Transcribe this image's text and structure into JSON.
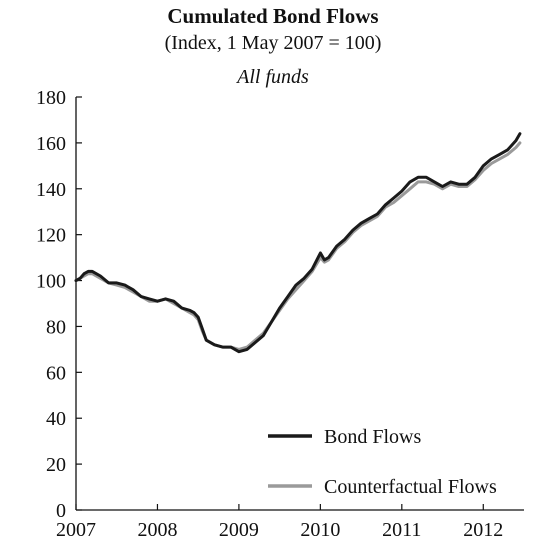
{
  "chart_data": {
    "type": "line",
    "title": "Cumulated Bond Flows",
    "subtitle": "(Index, 1 May 2007 = 100)",
    "panel_label": "All funds",
    "xlabel": "",
    "ylabel": "",
    "xlim": [
      2007,
      2012.5
    ],
    "ylim": [
      0,
      180
    ],
    "x_ticks": [
      2007,
      2008,
      2009,
      2010,
      2011,
      2012
    ],
    "y_ticks": [
      0,
      20,
      40,
      60,
      80,
      100,
      120,
      140,
      160,
      180
    ],
    "grid": false,
    "legend_position": "bottom-right",
    "series": [
      {
        "name": "Bond Flows",
        "color": "#1a1a1a",
        "x": [
          2007.0,
          2007.05,
          2007.1,
          2007.15,
          2007.2,
          2007.3,
          2007.4,
          2007.5,
          2007.6,
          2007.7,
          2007.8,
          2007.9,
          2008.0,
          2008.1,
          2008.2,
          2008.3,
          2008.4,
          2008.45,
          2008.5,
          2008.55,
          2008.6,
          2008.7,
          2008.8,
          2008.9,
          2009.0,
          2009.1,
          2009.2,
          2009.3,
          2009.4,
          2009.5,
          2009.6,
          2009.7,
          2009.8,
          2009.9,
          2010.0,
          2010.05,
          2010.1,
          2010.2,
          2010.3,
          2010.4,
          2010.5,
          2010.6,
          2010.7,
          2010.8,
          2010.9,
          2011.0,
          2011.1,
          2011.2,
          2011.3,
          2011.4,
          2011.5,
          2011.6,
          2011.7,
          2011.8,
          2011.9,
          2012.0,
          2012.1,
          2012.2,
          2012.3,
          2012.4,
          2012.45
        ],
        "values": [
          100,
          101,
          103,
          104,
          104,
          102,
          99,
          99,
          98,
          96,
          93,
          92,
          91,
          92,
          91,
          88,
          87,
          86,
          84,
          79,
          74,
          72,
          71,
          71,
          69,
          70,
          73,
          76,
          82,
          88,
          93,
          98,
          101,
          105,
          112,
          109,
          110,
          115,
          118,
          122,
          125,
          127,
          129,
          133,
          136,
          139,
          143,
          145,
          145,
          143,
          141,
          143,
          142,
          142,
          145,
          150,
          153,
          155,
          157,
          161,
          164
        ]
      },
      {
        "name": "Counterfactual Flows",
        "color": "#9a9a9a",
        "x": [
          2007.0,
          2007.05,
          2007.1,
          2007.15,
          2007.2,
          2007.3,
          2007.4,
          2007.5,
          2007.6,
          2007.7,
          2007.8,
          2007.9,
          2008.0,
          2008.1,
          2008.2,
          2008.3,
          2008.4,
          2008.45,
          2008.5,
          2008.55,
          2008.6,
          2008.7,
          2008.8,
          2008.9,
          2009.0,
          2009.1,
          2009.2,
          2009.3,
          2009.4,
          2009.5,
          2009.6,
          2009.7,
          2009.8,
          2009.9,
          2010.0,
          2010.05,
          2010.1,
          2010.2,
          2010.3,
          2010.4,
          2010.5,
          2010.6,
          2010.7,
          2010.8,
          2010.9,
          2011.0,
          2011.1,
          2011.2,
          2011.3,
          2011.4,
          2011.5,
          2011.6,
          2011.7,
          2011.8,
          2011.9,
          2012.0,
          2012.1,
          2012.2,
          2012.3,
          2012.4,
          2012.45
        ],
        "values": [
          100,
          101,
          102,
          103,
          103,
          101,
          99,
          98,
          97,
          95,
          93,
          91,
          91,
          92,
          90,
          88,
          86,
          85,
          83,
          78,
          74,
          72,
          71,
          71,
          70,
          71,
          74,
          77,
          82,
          87,
          92,
          96,
          100,
          104,
          110,
          108,
          109,
          114,
          117,
          121,
          124,
          126,
          128,
          132,
          134,
          137,
          140,
          143,
          143,
          142,
          140,
          142,
          141,
          141,
          144,
          148,
          151,
          153,
          155,
          158,
          160
        ]
      }
    ]
  }
}
